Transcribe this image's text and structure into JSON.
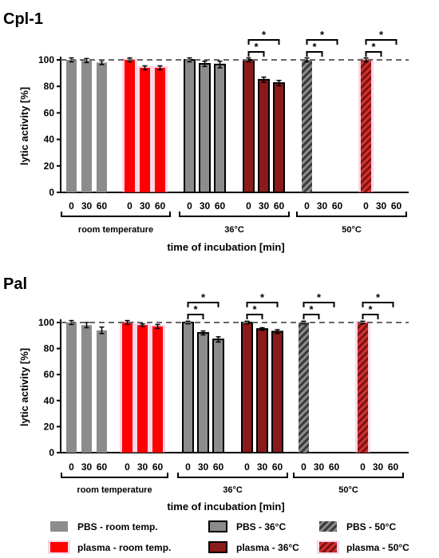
{
  "colors": {
    "pbs_gray": "#8c8c8c",
    "plasma_red": "#ff0000",
    "plasma_dark_red": "#8b1a1a",
    "pink_glow": "#f4b6d4",
    "black": "#000000",
    "ref_line": "#666666"
  },
  "legend": [
    {
      "label": "PBS - room temp.",
      "style": "gray_flat"
    },
    {
      "label": "PBS - 36°C",
      "style": "gray_outline"
    },
    {
      "label": "PBS - 50°C",
      "style": "gray_hatch"
    },
    {
      "label": "plasma - room temp.",
      "style": "red_flat"
    },
    {
      "label": "plasma - 36°C",
      "style": "darkred_outline"
    },
    {
      "label": "plasma - 50°C",
      "style": "darkred_hatch"
    }
  ],
  "chart_data": [
    {
      "type": "bar",
      "title": "Cpl-1",
      "ylabel": "lytic activity [%]",
      "xlabel": "time of incubation [min]",
      "ylim": [
        0,
        100
      ],
      "yticks": [
        0,
        20,
        40,
        60,
        80,
        100
      ],
      "reference_line": 100,
      "x_tick_labels": [
        "0",
        "30",
        "60"
      ],
      "groups": [
        {
          "label": "room temperature",
          "series": [
            {
              "style": "gray_flat",
              "values": [
                100,
                99.5,
                98
              ],
              "errors": [
                1.5,
                1.5,
                1.5
              ]
            },
            {
              "style": "red_flat",
              "values": [
                100,
                94,
                94
              ],
              "errors": [
                1.5,
                1.5,
                1.5
              ]
            }
          ]
        },
        {
          "label": "36°C",
          "series": [
            {
              "style": "gray_outline",
              "values": [
                100,
                97,
                96.5
              ],
              "errors": [
                1.5,
                2,
                2.5
              ]
            },
            {
              "style": "darkred_outline",
              "values": [
                100,
                85,
                82.5
              ],
              "errors": [
                1.5,
                2,
                2
              ]
            }
          ]
        },
        {
          "label": "50°C",
          "series": [
            {
              "style": "gray_hatch",
              "values": [
                100,
                0,
                0
              ],
              "errors": [
                1.5,
                0,
                0
              ]
            },
            {
              "style": "darkred_hatch",
              "values": [
                100,
                0,
                0
              ],
              "errors": [
                1.5,
                0,
                0
              ]
            }
          ]
        }
      ],
      "significance": [
        {
          "group": 1,
          "series": 1,
          "from": 0,
          "to": 1,
          "label": "*"
        },
        {
          "group": 1,
          "series": 1,
          "from": 0,
          "to": 2,
          "label": "*"
        },
        {
          "group": 2,
          "series": 0,
          "from": 0,
          "to": 1,
          "label": "*"
        },
        {
          "group": 2,
          "series": 0,
          "from": 0,
          "to": 2,
          "label": "*"
        },
        {
          "group": 2,
          "series": 1,
          "from": 0,
          "to": 1,
          "label": "*"
        },
        {
          "group": 2,
          "series": 1,
          "from": 0,
          "to": 2,
          "label": "*"
        }
      ]
    },
    {
      "type": "bar",
      "title": "Pal",
      "ylabel": "lytic activity [%]",
      "xlabel": "time of incubation [min]",
      "ylim": [
        0,
        100
      ],
      "yticks": [
        0,
        20,
        40,
        60,
        80,
        100
      ],
      "reference_line": 100,
      "x_tick_labels": [
        "0",
        "30",
        "60"
      ],
      "groups": [
        {
          "label": "room temperature",
          "series": [
            {
              "style": "gray_flat",
              "values": [
                100,
                98,
                94
              ],
              "errors": [
                1.5,
                2,
                2.5
              ]
            },
            {
              "style": "red_flat",
              "values": [
                100,
                98,
                97
              ],
              "errors": [
                1.5,
                1,
                1.5
              ]
            }
          ]
        },
        {
          "label": "36°C",
          "series": [
            {
              "style": "gray_outline",
              "values": [
                100,
                92,
                87
              ],
              "errors": [
                1,
                1.5,
                2
              ]
            },
            {
              "style": "darkred_outline",
              "values": [
                100,
                95,
                93
              ],
              "errors": [
                1,
                1,
                1.5
              ]
            }
          ]
        },
        {
          "label": "50°C",
          "series": [
            {
              "style": "gray_hatch",
              "values": [
                100,
                0,
                0
              ],
              "errors": [
                1,
                0,
                0
              ]
            },
            {
              "style": "darkred_hatch",
              "values": [
                100,
                0,
                0
              ],
              "errors": [
                1,
                0,
                0
              ]
            }
          ]
        }
      ],
      "significance": [
        {
          "group": 1,
          "series": 0,
          "from": 0,
          "to": 1,
          "label": "*"
        },
        {
          "group": 1,
          "series": 0,
          "from": 0,
          "to": 2,
          "label": "*"
        },
        {
          "group": 1,
          "series": 1,
          "from": 0,
          "to": 1,
          "label": "*"
        },
        {
          "group": 1,
          "series": 1,
          "from": 0,
          "to": 2,
          "label": "*"
        },
        {
          "group": 2,
          "series": 0,
          "from": 0,
          "to": 1,
          "label": "*"
        },
        {
          "group": 2,
          "series": 0,
          "from": 0,
          "to": 2,
          "label": "*"
        },
        {
          "group": 2,
          "series": 1,
          "from": 0,
          "to": 1,
          "label": "*"
        },
        {
          "group": 2,
          "series": 1,
          "from": 0,
          "to": 2,
          "label": "*"
        }
      ]
    }
  ]
}
